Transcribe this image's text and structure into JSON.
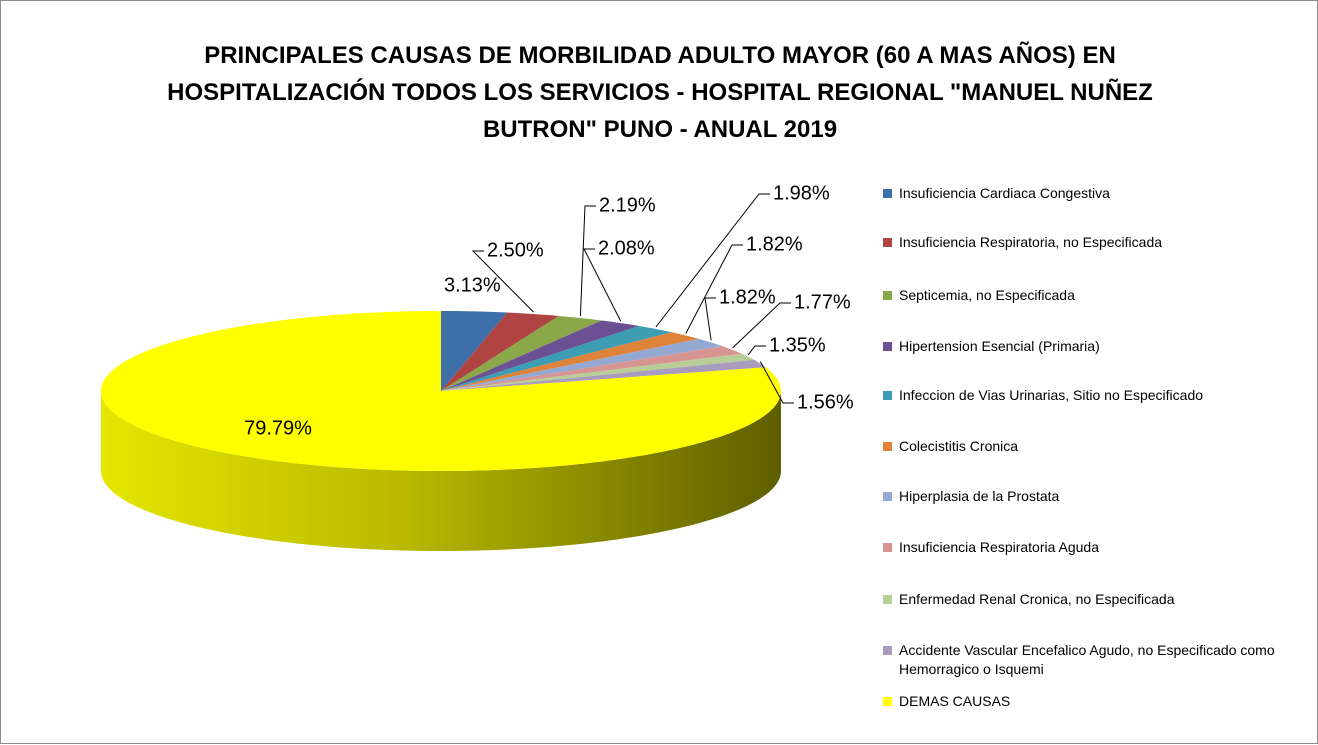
{
  "chart_data": {
    "type": "pie3d",
    "title": "PRINCIPALES CAUSAS DE MORBILIDAD ADULTO MAYOR (60 A MAS AÑOS) EN HOSPITALIZACIÓN TODOS LOS SERVICIOS - HOSPITAL REGIONAL \"MANUEL NUÑEZ BUTRON\" PUNO - ANUAL 2019",
    "categories": [
      "Insuficiencia Cardiaca Congestiva",
      "Insuficiencia Respiratoria, no Especificada",
      "Septicemia, no Especificada",
      "Hipertension Esencial (Primaria)",
      "Infeccion de Vias Urinarias, Sitio no Especificado",
      "Colecistitis Cronica",
      "Hiperplasia de la Prostata",
      "Insuficiencia Respiratoria Aguda",
      "Enfermedad Renal Cronica, no Especificada",
      "Accidente Vascular Encefalico Agudo, no Especificado como Hemorragico o  Isquemi",
      "DEMAS CAUSAS"
    ],
    "values": [
      3.13,
      2.5,
      2.19,
      2.08,
      1.98,
      1.82,
      1.82,
      1.77,
      1.35,
      1.56,
      79.79
    ],
    "value_labels": [
      "3.13%",
      "2.50%",
      "2.19%",
      "2.08%",
      "1.98%",
      "1.82%",
      "1.82%",
      "1.77%",
      "1.35%",
      "1.56%",
      "79.79%"
    ],
    "colors": [
      "#3f6fa8",
      "#b04442",
      "#8aa84a",
      "#6b5193",
      "#3d9db3",
      "#e0833a",
      "#93a9d1",
      "#d69593",
      "#b9cd96",
      "#a99bbd",
      "#ffff00"
    ],
    "legend": "right"
  }
}
